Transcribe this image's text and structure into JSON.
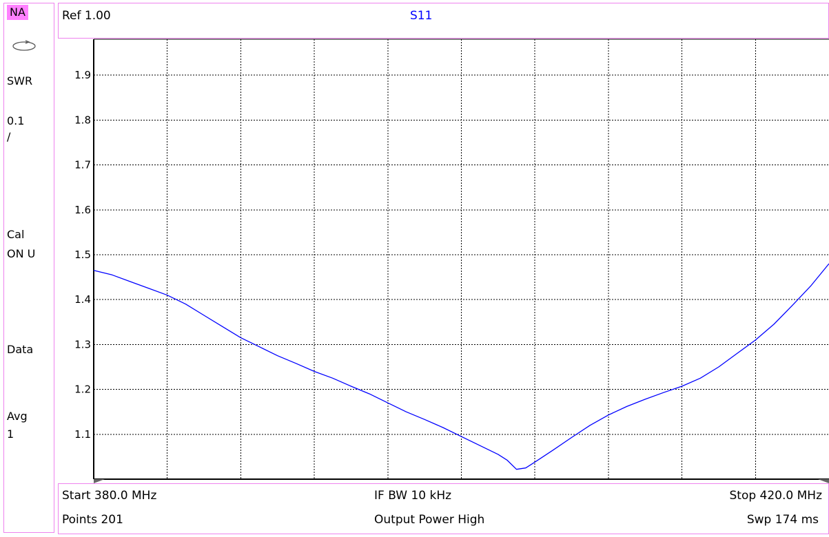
{
  "sidebar": {
    "mode_badge": "NA",
    "loop_icon": "sweep-loop-icon",
    "format": "SWR",
    "scale_value": "0.1",
    "scale_unit": "/",
    "cal_label": "Cal",
    "cal_status": "ON U",
    "data_label": "Data",
    "avg_label": "Avg",
    "avg_value": "1"
  },
  "header": {
    "ref": "Ref 1.00",
    "trace": "S11"
  },
  "footer": {
    "start": "Start 380.0 MHz",
    "ifbw": "IF BW 10 kHz",
    "stop": "Stop 420.0 MHz",
    "points": "Points 201",
    "output_power": "Output Power High",
    "sweep_time": "Swp 174 ms"
  },
  "colors": {
    "trace": "#0000ff",
    "frame": "#ee82ee",
    "badge": "#ff80ff",
    "grid": "#000000"
  },
  "chart_data": {
    "type": "line",
    "title": "",
    "xlabel": "",
    "ylabel": "",
    "xlim": [
      380.0,
      420.0
    ],
    "ylim": [
      1.0,
      1.98
    ],
    "grid": true,
    "x_divisions": 10,
    "y_tick_labels": [
      "1.1",
      "1.2",
      "1.3",
      "1.4",
      "1.5",
      "1.6",
      "1.7",
      "1.8",
      "1.9"
    ],
    "series": [
      {
        "name": "S11",
        "color": "#0000ff",
        "x": [
          380.0,
          381.0,
          382.0,
          383.0,
          384.0,
          385.0,
          386.0,
          387.0,
          388.0,
          389.0,
          390.0,
          391.0,
          392.0,
          393.0,
          394.0,
          395.0,
          396.0,
          397.0,
          398.0,
          399.0,
          400.0,
          401.0,
          402.0,
          402.5,
          403.0,
          403.5,
          404.0,
          405.0,
          406.0,
          407.0,
          408.0,
          409.0,
          410.0,
          411.0,
          412.0,
          413.0,
          414.0,
          415.0,
          416.0,
          417.0,
          418.0,
          419.0,
          420.0
        ],
        "y": [
          1.465,
          1.455,
          1.44,
          1.425,
          1.41,
          1.39,
          1.365,
          1.34,
          1.315,
          1.295,
          1.275,
          1.258,
          1.24,
          1.225,
          1.207,
          1.19,
          1.17,
          1.15,
          1.133,
          1.115,
          1.095,
          1.075,
          1.055,
          1.042,
          1.022,
          1.025,
          1.038,
          1.065,
          1.093,
          1.12,
          1.143,
          1.162,
          1.178,
          1.193,
          1.207,
          1.225,
          1.25,
          1.28,
          1.31,
          1.345,
          1.387,
          1.43,
          1.48
        ]
      }
    ]
  }
}
